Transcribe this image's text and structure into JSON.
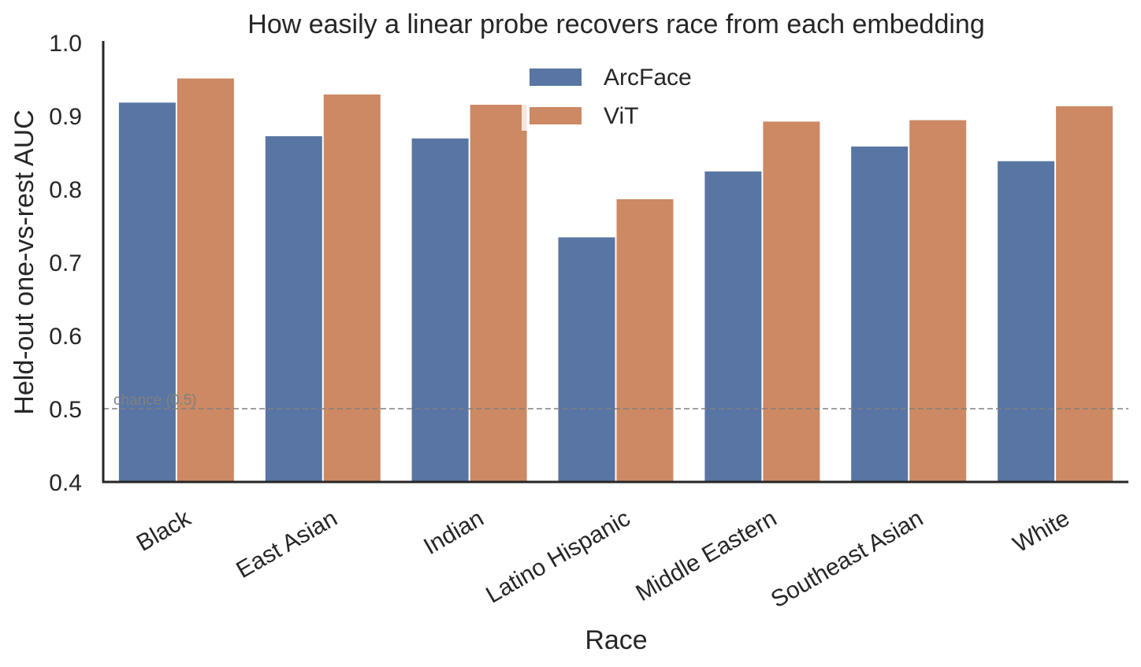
{
  "chart_data": {
    "type": "bar",
    "title": "How easily a linear probe recovers race from each embedding",
    "xlabel": "Race",
    "ylabel": "Held-out one-vs-rest AUC",
    "ylim": [
      0.4,
      1.0
    ],
    "yticks": [
      "0.4",
      "0.5",
      "0.6",
      "0.7",
      "0.8",
      "0.9",
      "1.0"
    ],
    "categories": [
      "Black",
      "East Asian",
      "Indian",
      "Latino Hispanic",
      "Middle Eastern",
      "Southeast Asian",
      "White"
    ],
    "series": [
      {
        "name": "ArcFace",
        "color": "#5975a4",
        "values": [
          0.918,
          0.872,
          0.869,
          0.734,
          0.824,
          0.858,
          0.838
        ]
      },
      {
        "name": "ViT",
        "color": "#cc8963",
        "values": [
          0.951,
          0.929,
          0.915,
          0.786,
          0.892,
          0.894,
          0.913
        ]
      }
    ],
    "reference_line": {
      "value": 0.5,
      "label": "chance (0.5)",
      "color": "#808080",
      "style": "dashed"
    },
    "legend": {
      "position": "top-center"
    },
    "grid": false
  }
}
